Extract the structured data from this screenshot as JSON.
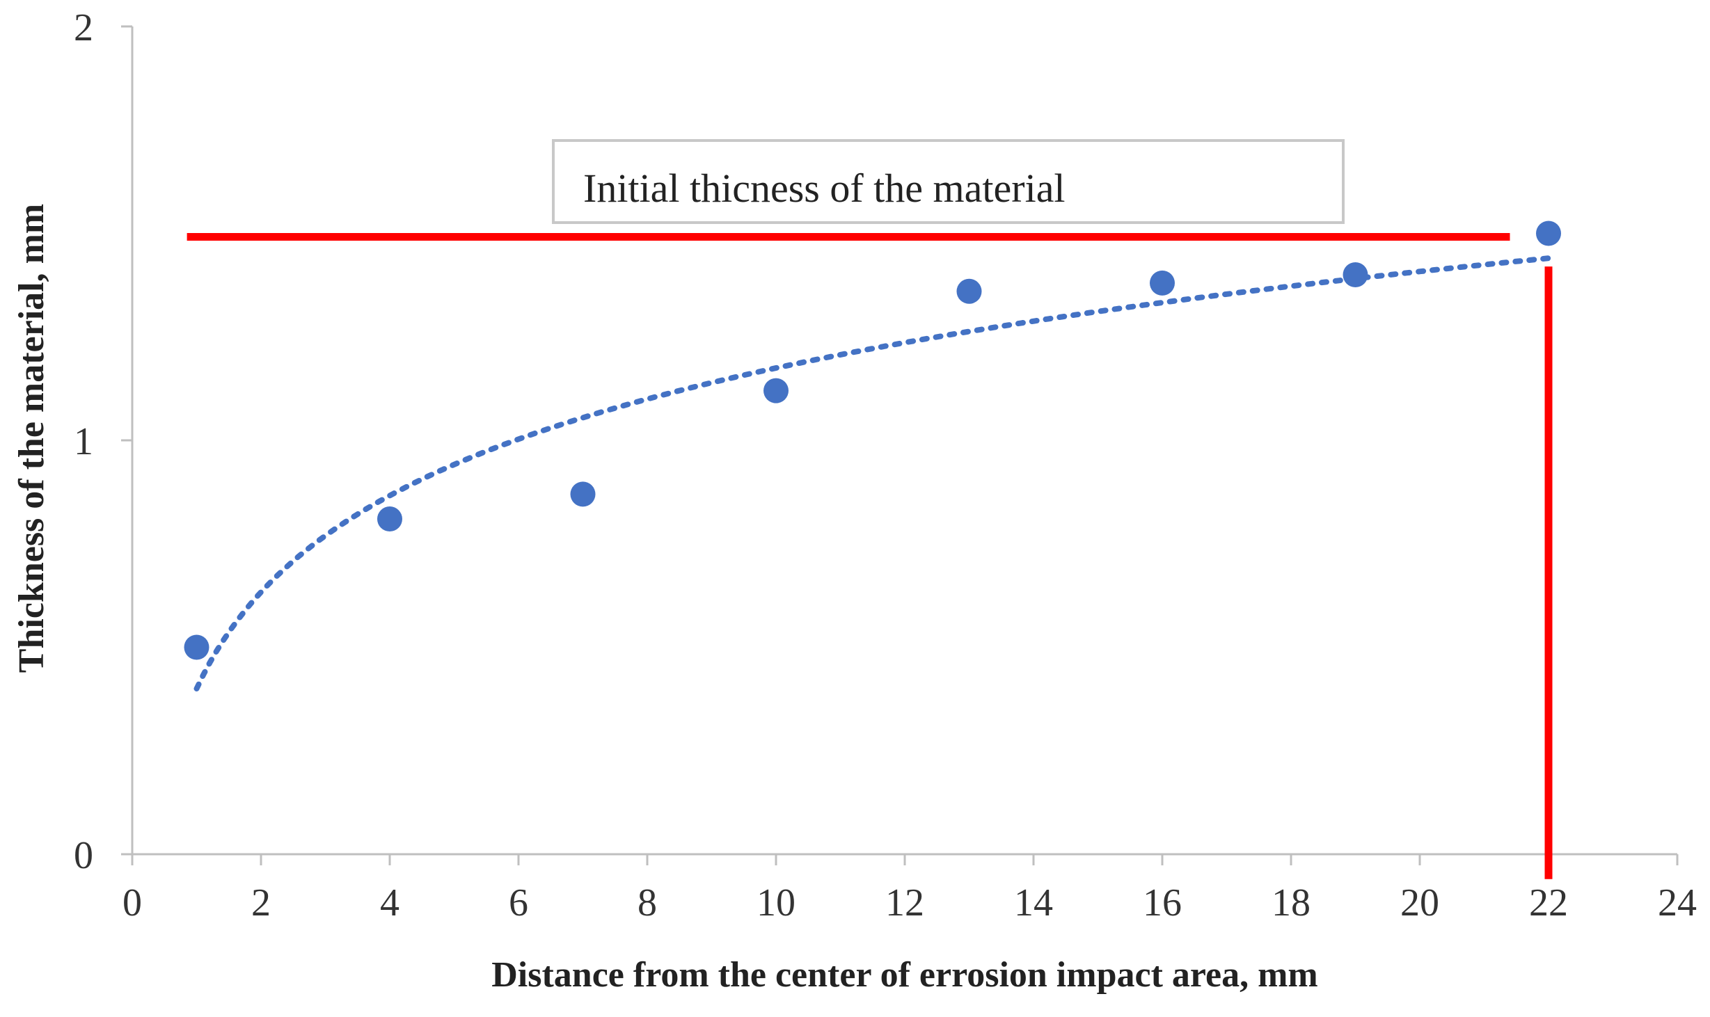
{
  "chart_data": {
    "type": "scatter",
    "xlabel": "Distance from the center of errosion impact area, mm",
    "ylabel": "Thickness of the material, mm",
    "xlim": [
      0,
      24
    ],
    "ylim": [
      0,
      2
    ],
    "x_ticks": [
      "0",
      "2",
      "4",
      "6",
      "8",
      "10",
      "12",
      "14",
      "16",
      "18",
      "20",
      "22",
      "24"
    ],
    "y_ticks": [
      "0",
      "1",
      "2"
    ],
    "grid": false,
    "legend": "none",
    "series": [
      {
        "kind": "points",
        "x": [
          1,
          4,
          7,
          10,
          13,
          16,
          19,
          22
        ],
        "y": [
          0.5,
          0.81,
          0.87,
          1.12,
          1.36,
          1.38,
          1.4,
          1.5
        ],
        "color": "#4472C4"
      },
      {
        "kind": "logarithmic trendline",
        "style": "dotted",
        "x_range": [
          1,
          22
        ],
        "y_start": 0.4,
        "y_end": 1.44,
        "color": "#4472C4"
      }
    ],
    "annotations": [
      {
        "kind": "horizontal line",
        "y": 1.5,
        "x_range": [
          0.85,
          21.4
        ],
        "color": "#FF0000",
        "label": "Initial thicness of the material"
      },
      {
        "kind": "vertical line",
        "x": 22,
        "y_range": [
          -0.06,
          1.42
        ],
        "color": "#FF0000"
      }
    ]
  }
}
